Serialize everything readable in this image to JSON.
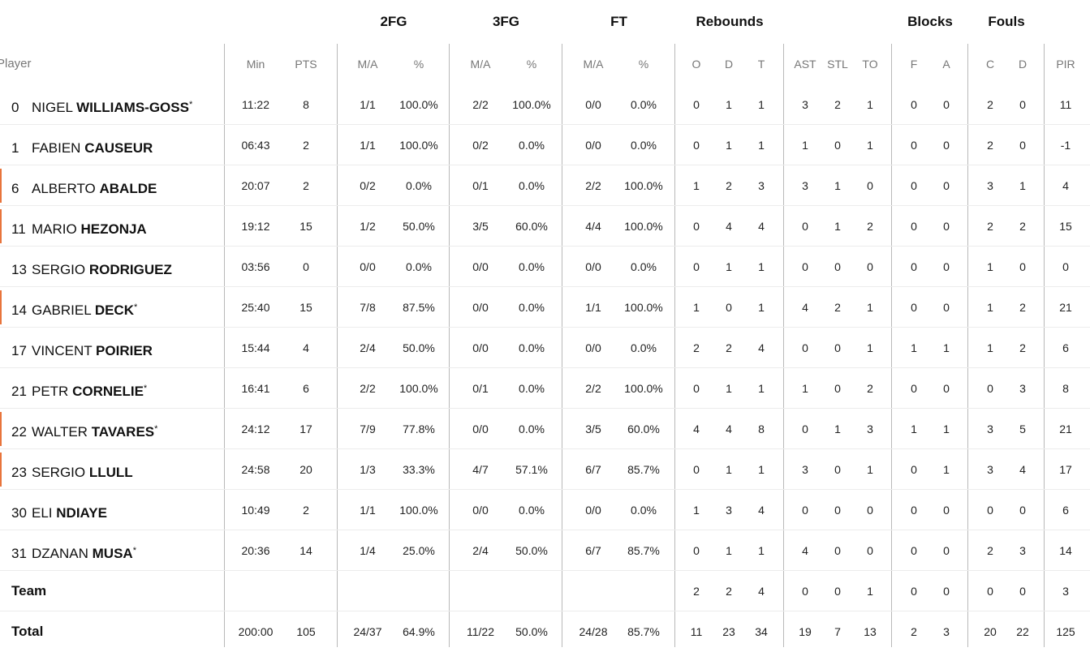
{
  "groups": {
    "fg2": "2FG",
    "fg3": "3FG",
    "ft": "FT",
    "rebounds": "Rebounds",
    "blocks": "Blocks",
    "fouls": "Fouls"
  },
  "columns": {
    "player": "Player",
    "min": "Min",
    "pts": "PTS",
    "fg2_ma": "M/A",
    "fg2_pct": "%",
    "fg3_ma": "M/A",
    "fg3_pct": "%",
    "ft_ma": "M/A",
    "ft_pct": "%",
    "reb_o": "O",
    "reb_d": "D",
    "reb_t": "T",
    "ast": "AST",
    "stl": "STL",
    "to": "TO",
    "blk_f": "F",
    "blk_a": "A",
    "foul_c": "C",
    "foul_d": "D",
    "pir": "PIR"
  },
  "accent_color": "#e8743b",
  "players": [
    {
      "num": "0",
      "first": "NIGEL",
      "last": "WILLIAMS-GOSS",
      "star": "*",
      "accent": false,
      "min": "11:22",
      "pts": "8",
      "fg2_ma": "1/1",
      "fg2_pct": "100.0%",
      "fg3_ma": "2/2",
      "fg3_pct": "100.0%",
      "ft_ma": "0/0",
      "ft_pct": "0.0%",
      "reb_o": "0",
      "reb_d": "1",
      "reb_t": "1",
      "ast": "3",
      "stl": "2",
      "to": "1",
      "blk_f": "0",
      "blk_a": "0",
      "foul_c": "2",
      "foul_d": "0",
      "pir": "11"
    },
    {
      "num": "1",
      "first": "FABIEN",
      "last": "CAUSEUR",
      "star": "",
      "accent": false,
      "min": "06:43",
      "pts": "2",
      "fg2_ma": "1/1",
      "fg2_pct": "100.0%",
      "fg3_ma": "0/2",
      "fg3_pct": "0.0%",
      "ft_ma": "0/0",
      "ft_pct": "0.0%",
      "reb_o": "0",
      "reb_d": "1",
      "reb_t": "1",
      "ast": "1",
      "stl": "0",
      "to": "1",
      "blk_f": "0",
      "blk_a": "0",
      "foul_c": "2",
      "foul_d": "0",
      "pir": "-1"
    },
    {
      "num": "6",
      "first": "ALBERTO",
      "last": "ABALDE",
      "star": "",
      "accent": true,
      "min": "20:07",
      "pts": "2",
      "fg2_ma": "0/2",
      "fg2_pct": "0.0%",
      "fg3_ma": "0/1",
      "fg3_pct": "0.0%",
      "ft_ma": "2/2",
      "ft_pct": "100.0%",
      "reb_o": "1",
      "reb_d": "2",
      "reb_t": "3",
      "ast": "3",
      "stl": "1",
      "to": "0",
      "blk_f": "0",
      "blk_a": "0",
      "foul_c": "3",
      "foul_d": "1",
      "pir": "4"
    },
    {
      "num": "11",
      "first": "MARIO",
      "last": "HEZONJA",
      "star": "",
      "accent": true,
      "min": "19:12",
      "pts": "15",
      "fg2_ma": "1/2",
      "fg2_pct": "50.0%",
      "fg3_ma": "3/5",
      "fg3_pct": "60.0%",
      "ft_ma": "4/4",
      "ft_pct": "100.0%",
      "reb_o": "0",
      "reb_d": "4",
      "reb_t": "4",
      "ast": "0",
      "stl": "1",
      "to": "2",
      "blk_f": "0",
      "blk_a": "0",
      "foul_c": "2",
      "foul_d": "2",
      "pir": "15"
    },
    {
      "num": "13",
      "first": "SERGIO",
      "last": "RODRIGUEZ",
      "star": "",
      "accent": false,
      "min": "03:56",
      "pts": "0",
      "fg2_ma": "0/0",
      "fg2_pct": "0.0%",
      "fg3_ma": "0/0",
      "fg3_pct": "0.0%",
      "ft_ma": "0/0",
      "ft_pct": "0.0%",
      "reb_o": "0",
      "reb_d": "1",
      "reb_t": "1",
      "ast": "0",
      "stl": "0",
      "to": "0",
      "blk_f": "0",
      "blk_a": "0",
      "foul_c": "1",
      "foul_d": "0",
      "pir": "0"
    },
    {
      "num": "14",
      "first": "GABRIEL",
      "last": "DECK",
      "star": "*",
      "accent": true,
      "min": "25:40",
      "pts": "15",
      "fg2_ma": "7/8",
      "fg2_pct": "87.5%",
      "fg3_ma": "0/0",
      "fg3_pct": "0.0%",
      "ft_ma": "1/1",
      "ft_pct": "100.0%",
      "reb_o": "1",
      "reb_d": "0",
      "reb_t": "1",
      "ast": "4",
      "stl": "2",
      "to": "1",
      "blk_f": "0",
      "blk_a": "0",
      "foul_c": "1",
      "foul_d": "2",
      "pir": "21"
    },
    {
      "num": "17",
      "first": "VINCENT",
      "last": "POIRIER",
      "star": "",
      "accent": false,
      "min": "15:44",
      "pts": "4",
      "fg2_ma": "2/4",
      "fg2_pct": "50.0%",
      "fg3_ma": "0/0",
      "fg3_pct": "0.0%",
      "ft_ma": "0/0",
      "ft_pct": "0.0%",
      "reb_o": "2",
      "reb_d": "2",
      "reb_t": "4",
      "ast": "0",
      "stl": "0",
      "to": "1",
      "blk_f": "1",
      "blk_a": "1",
      "foul_c": "1",
      "foul_d": "2",
      "pir": "6"
    },
    {
      "num": "21",
      "first": "PETR",
      "last": "CORNELIE",
      "star": "*",
      "accent": false,
      "min": "16:41",
      "pts": "6",
      "fg2_ma": "2/2",
      "fg2_pct": "100.0%",
      "fg3_ma": "0/1",
      "fg3_pct": "0.0%",
      "ft_ma": "2/2",
      "ft_pct": "100.0%",
      "reb_o": "0",
      "reb_d": "1",
      "reb_t": "1",
      "ast": "1",
      "stl": "0",
      "to": "2",
      "blk_f": "0",
      "blk_a": "0",
      "foul_c": "0",
      "foul_d": "3",
      "pir": "8"
    },
    {
      "num": "22",
      "first": "WALTER",
      "last": "TAVARES",
      "star": "*",
      "accent": true,
      "min": "24:12",
      "pts": "17",
      "fg2_ma": "7/9",
      "fg2_pct": "77.8%",
      "fg3_ma": "0/0",
      "fg3_pct": "0.0%",
      "ft_ma": "3/5",
      "ft_pct": "60.0%",
      "reb_o": "4",
      "reb_d": "4",
      "reb_t": "8",
      "ast": "0",
      "stl": "1",
      "to": "3",
      "blk_f": "1",
      "blk_a": "1",
      "foul_c": "3",
      "foul_d": "5",
      "pir": "21"
    },
    {
      "num": "23",
      "first": "SERGIO",
      "last": "LLULL",
      "star": "",
      "accent": true,
      "min": "24:58",
      "pts": "20",
      "fg2_ma": "1/3",
      "fg2_pct": "33.3%",
      "fg3_ma": "4/7",
      "fg3_pct": "57.1%",
      "ft_ma": "6/7",
      "ft_pct": "85.7%",
      "reb_o": "0",
      "reb_d": "1",
      "reb_t": "1",
      "ast": "3",
      "stl": "0",
      "to": "1",
      "blk_f": "0",
      "blk_a": "1",
      "foul_c": "3",
      "foul_d": "4",
      "pir": "17"
    },
    {
      "num": "30",
      "first": "ELI",
      "last": "NDIAYE",
      "star": "",
      "accent": false,
      "min": "10:49",
      "pts": "2",
      "fg2_ma": "1/1",
      "fg2_pct": "100.0%",
      "fg3_ma": "0/0",
      "fg3_pct": "0.0%",
      "ft_ma": "0/0",
      "ft_pct": "0.0%",
      "reb_o": "1",
      "reb_d": "3",
      "reb_t": "4",
      "ast": "0",
      "stl": "0",
      "to": "0",
      "blk_f": "0",
      "blk_a": "0",
      "foul_c": "0",
      "foul_d": "0",
      "pir": "6"
    },
    {
      "num": "31",
      "first": "DZANAN",
      "last": "MUSA",
      "star": "*",
      "accent": false,
      "min": "20:36",
      "pts": "14",
      "fg2_ma": "1/4",
      "fg2_pct": "25.0%",
      "fg3_ma": "2/4",
      "fg3_pct": "50.0%",
      "ft_ma": "6/7",
      "ft_pct": "85.7%",
      "reb_o": "0",
      "reb_d": "1",
      "reb_t": "1",
      "ast": "4",
      "stl": "0",
      "to": "0",
      "blk_f": "0",
      "blk_a": "0",
      "foul_c": "2",
      "foul_d": "3",
      "pir": "14"
    }
  ],
  "team": {
    "label": "Team",
    "min": "",
    "pts": "",
    "fg2_ma": "",
    "fg2_pct": "",
    "fg3_ma": "",
    "fg3_pct": "",
    "ft_ma": "",
    "ft_pct": "",
    "reb_o": "2",
    "reb_d": "2",
    "reb_t": "4",
    "ast": "0",
    "stl": "0",
    "to": "1",
    "blk_f": "0",
    "blk_a": "0",
    "foul_c": "0",
    "foul_d": "0",
    "pir": "3"
  },
  "total": {
    "label": "Total",
    "min": "200:00",
    "pts": "105",
    "fg2_ma": "24/37",
    "fg2_pct": "64.9%",
    "fg3_ma": "11/22",
    "fg3_pct": "50.0%",
    "ft_ma": "24/28",
    "ft_pct": "85.7%",
    "reb_o": "11",
    "reb_d": "23",
    "reb_t": "34",
    "ast": "19",
    "stl": "7",
    "to": "13",
    "blk_f": "2",
    "blk_a": "3",
    "foul_c": "20",
    "foul_d": "22",
    "pir": "125"
  }
}
